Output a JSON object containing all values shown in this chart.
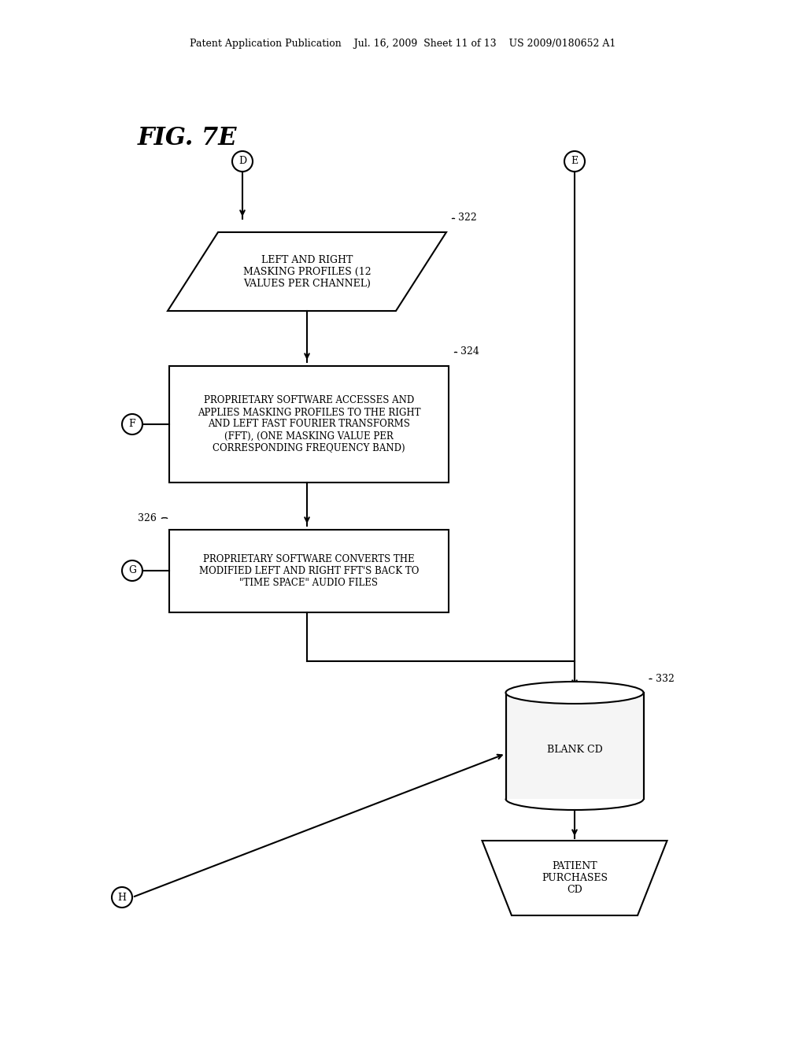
{
  "bg_color": "#ffffff",
  "header_text": "Patent Application Publication    Jul. 16, 2009  Sheet 11 of 13    US 2009/0180652 A1",
  "fig_label": "FIG. 7E",
  "connector_label_D": "D",
  "connector_label_E": "E",
  "connector_label_F": "F",
  "connector_label_G": "G",
  "connector_label_H": "H",
  "box322_label": "322",
  "box324_label": "324",
  "box326_label": "326",
  "box332_label": "332",
  "parallelogram_text": "LEFT AND RIGHT\nMASKING PROFILES (12\nVALUES PER CHANNEL)",
  "rect324_text": "PROPRIETARY SOFTWARE ACCESSES AND\nAPPLIES MASKING PROFILES TO THE RIGHT\nAND LEFT FAST FOURIER TRANSFORMS\n(FFT), (ONE MASKING VALUE PER\nCORRESPONDING FREQUENCY BAND)",
  "rect326_text": "PROPRIETARY SOFTWARE CONVERTS THE\nMODIFIED LEFT AND RIGHT FFT'S BACK TO\n\"TIME SPACE\" AUDIO FILES",
  "cylinder_text": "BLANK CD",
  "trapezoid_text": "PATIENT\nPURCHASES\nCD",
  "text_color": "#000000",
  "line_color": "#000000"
}
